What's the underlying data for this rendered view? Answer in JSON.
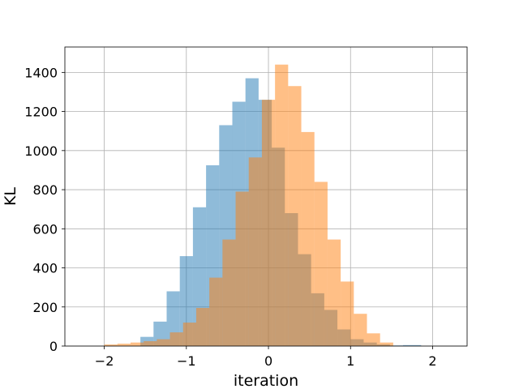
{
  "chart_data": {
    "type": "bar",
    "title": "",
    "xlabel": "iteration",
    "ylabel": "KL",
    "xlim": [
      -2.48,
      2.42
    ],
    "ylim": [
      0,
      1530
    ],
    "grid": true,
    "xticks": [
      -2,
      -1,
      0,
      1,
      2
    ],
    "xtick_labels": [
      "−2",
      "−1",
      "0",
      "1",
      "2"
    ],
    "yticks": [
      0,
      200,
      400,
      600,
      800,
      1000,
      1200,
      1400
    ],
    "ytick_labels": [
      "0",
      "200",
      "400",
      "600",
      "800",
      "1000",
      "1200",
      "1400"
    ],
    "series": [
      {
        "color": "#1f77b4",
        "alpha": 0.5,
        "bin_edges": [
          -1.56,
          -1.4,
          -1.24,
          -1.08,
          -0.92,
          -0.76,
          -0.6,
          -0.44,
          -0.28,
          -0.12,
          0.04,
          0.2,
          0.36,
          0.52,
          0.68,
          0.84,
          1.0,
          1.16,
          1.32,
          1.48,
          1.64,
          1.86
        ],
        "values": [
          47,
          125,
          280,
          460,
          710,
          925,
          1130,
          1250,
          1370,
          1260,
          1015,
          680,
          470,
          270,
          185,
          85,
          35,
          18,
          8,
          3,
          5
        ]
      },
      {
        "color": "#ff7f0e",
        "alpha": 0.5,
        "bin_edges": [
          -2.0,
          -1.84,
          -1.68,
          -1.52,
          -1.36,
          -1.2,
          -1.04,
          -0.88,
          -0.72,
          -0.56,
          -0.4,
          -0.24,
          -0.08,
          0.08,
          0.24,
          0.4,
          0.56,
          0.72,
          0.88,
          1.04,
          1.2,
          1.36,
          1.52
        ],
        "values": [
          8,
          12,
          18,
          25,
          35,
          70,
          120,
          195,
          350,
          545,
          790,
          965,
          1260,
          1440,
          1330,
          1095,
          840,
          545,
          330,
          165,
          65,
          18
        ]
      }
    ]
  }
}
